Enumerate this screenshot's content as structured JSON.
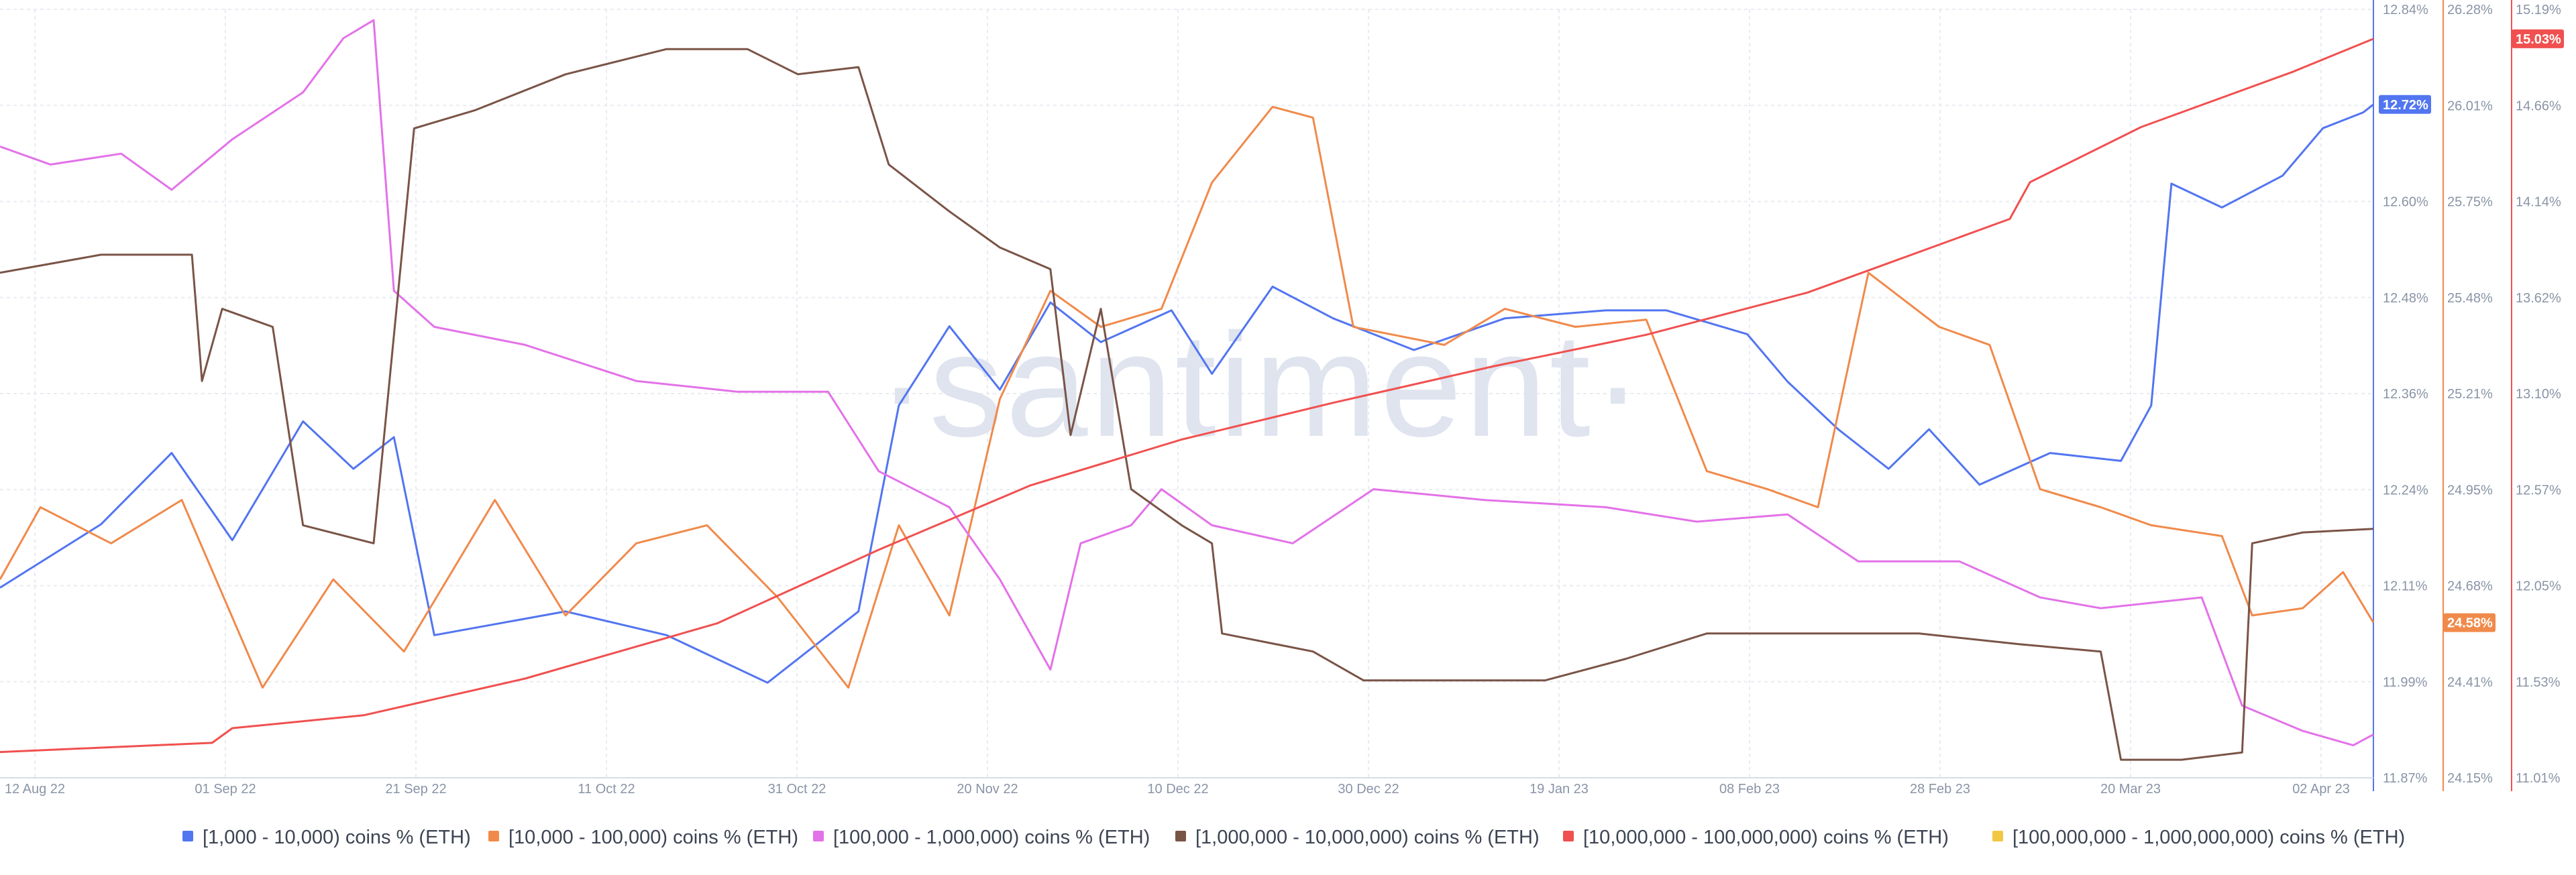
{
  "watermark": "·santiment·",
  "chart_data": {
    "type": "line",
    "x_ticks": [
      "12 Aug 22",
      "01 Sep 22",
      "21 Sep 22",
      "11 Oct 22",
      "31 Oct 22",
      "20 Nov 22",
      "10 Dec 22",
      "30 Dec 22",
      "19 Jan 23",
      "08 Feb 23",
      "28 Feb 23",
      "20 Mar 23",
      "02 Apr 23"
    ],
    "x_range": [
      "2022-08-10",
      "2023-04-02"
    ],
    "grid": true,
    "legend_position": "bottom",
    "axes": [
      {
        "id": "blue",
        "color": "#5275f0",
        "ylim": [
          11.87,
          12.84
        ],
        "ticks": [
          "12.84%",
          "12.72%",
          "12.60%",
          "12.48%",
          "12.36%",
          "12.24%",
          "12.11%",
          "11.99%",
          "11.87%"
        ],
        "badge": "12.72%"
      },
      {
        "id": "orange",
        "color": "#f08a4b",
        "ylim": [
          24.15,
          26.28
        ],
        "ticks": [
          "26.28%",
          "26.01%",
          "25.75%",
          "25.48%",
          "25.21%",
          "24.95%",
          "24.68%",
          "24.41%",
          "24.15%"
        ],
        "badge": "24.58%"
      },
      {
        "id": "red",
        "color": "#f0504f",
        "ylim": [
          11.01,
          15.19
        ],
        "ticks": [
          "15.19%",
          "14.66%",
          "14.14%",
          "13.62%",
          "13.10%",
          "12.57%",
          "12.05%",
          "11.53%",
          "11.01%"
        ],
        "badge": "15.03%"
      }
    ],
    "series": [
      {
        "name": "[1,000 - 10,000) coins % (ETH)",
        "color": "#5275f0",
        "axis": "blue",
        "unit": "%",
        "points": [
          [
            "2022-08-10",
            12.11
          ],
          [
            "2022-08-20",
            12.19
          ],
          [
            "2022-08-27",
            12.28
          ],
          [
            "2022-09-02",
            12.17
          ],
          [
            "2022-09-09",
            12.32
          ],
          [
            "2022-09-14",
            12.26
          ],
          [
            "2022-09-18",
            12.3
          ],
          [
            "2022-09-22",
            12.05
          ],
          [
            "2022-10-05",
            12.08
          ],
          [
            "2022-10-15",
            12.05
          ],
          [
            "2022-10-25",
            11.99
          ],
          [
            "2022-11-03",
            12.08
          ],
          [
            "2022-11-07",
            12.34
          ],
          [
            "2022-11-12",
            12.44
          ],
          [
            "2022-11-17",
            12.36
          ],
          [
            "2022-11-22",
            12.47
          ],
          [
            "2022-11-27",
            12.42
          ],
          [
            "2022-12-04",
            12.46
          ],
          [
            "2022-12-08",
            12.38
          ],
          [
            "2022-12-14",
            12.49
          ],
          [
            "2022-12-20",
            12.45
          ],
          [
            "2022-12-28",
            12.41
          ],
          [
            "2023-01-06",
            12.45
          ],
          [
            "2023-01-16",
            12.46
          ],
          [
            "2023-01-22",
            12.46
          ],
          [
            "2023-01-30",
            12.43
          ],
          [
            "2023-02-03",
            12.37
          ],
          [
            "2023-02-08",
            12.31
          ],
          [
            "2023-02-13",
            12.26
          ],
          [
            "2023-02-17",
            12.31
          ],
          [
            "2023-02-22",
            12.24
          ],
          [
            "2023-03-01",
            12.28
          ],
          [
            "2023-03-08",
            12.27
          ],
          [
            "2023-03-11",
            12.34
          ],
          [
            "2023-03-13",
            12.62
          ],
          [
            "2023-03-18",
            12.59
          ],
          [
            "2023-03-24",
            12.63
          ],
          [
            "2023-03-28",
            12.69
          ],
          [
            "2023-04-01",
            12.71
          ],
          [
            "2023-04-02",
            12.72
          ]
        ]
      },
      {
        "name": "[10,000 - 100,000) coins % (ETH)",
        "color": "#f08a4b",
        "axis": "orange",
        "unit": "%",
        "points": [
          [
            "2022-08-10",
            24.7
          ],
          [
            "2022-08-14",
            24.9
          ],
          [
            "2022-08-21",
            24.8
          ],
          [
            "2022-08-28",
            24.92
          ],
          [
            "2022-09-05",
            24.4
          ],
          [
            "2022-09-12",
            24.7
          ],
          [
            "2022-09-19",
            24.5
          ],
          [
            "2022-09-28",
            24.92
          ],
          [
            "2022-10-05",
            24.6
          ],
          [
            "2022-10-12",
            24.8
          ],
          [
            "2022-10-19",
            24.85
          ],
          [
            "2022-10-26",
            24.65
          ],
          [
            "2022-11-02",
            24.4
          ],
          [
            "2022-11-07",
            24.85
          ],
          [
            "2022-11-12",
            24.6
          ],
          [
            "2022-11-17",
            25.2
          ],
          [
            "2022-11-22",
            25.5
          ],
          [
            "2022-11-27",
            25.4
          ],
          [
            "2022-12-03",
            25.45
          ],
          [
            "2022-12-08",
            25.8
          ],
          [
            "2022-12-14",
            26.01
          ],
          [
            "2022-12-18",
            25.98
          ],
          [
            "2022-12-22",
            25.4
          ],
          [
            "2022-12-31",
            25.35
          ],
          [
            "2023-01-06",
            25.45
          ],
          [
            "2023-01-13",
            25.4
          ],
          [
            "2023-01-20",
            25.42
          ],
          [
            "2023-01-26",
            25.0
          ],
          [
            "2023-02-01",
            24.95
          ],
          [
            "2023-02-06",
            24.9
          ],
          [
            "2023-02-11",
            25.55
          ],
          [
            "2023-02-18",
            25.4
          ],
          [
            "2023-02-23",
            25.35
          ],
          [
            "2023-02-28",
            24.95
          ],
          [
            "2023-03-06",
            24.9
          ],
          [
            "2023-03-11",
            24.85
          ],
          [
            "2023-03-18",
            24.82
          ],
          [
            "2023-03-21",
            24.6
          ],
          [
            "2023-03-26",
            24.62
          ],
          [
            "2023-03-30",
            24.72
          ],
          [
            "2023-04-02",
            24.58
          ]
        ]
      },
      {
        "name": "[100,000  - 1,000,000) coins % (ETH)",
        "color": "#e372e8",
        "axis": "orange",
        "unit": "%",
        "points": [
          [
            "2022-08-10",
            25.9
          ],
          [
            "2022-08-15",
            25.85
          ],
          [
            "2022-08-22",
            25.88
          ],
          [
            "2022-08-27",
            25.78
          ],
          [
            "2022-09-02",
            25.92
          ],
          [
            "2022-09-09",
            26.05
          ],
          [
            "2022-09-13",
            26.2
          ],
          [
            "2022-09-16",
            26.25
          ],
          [
            "2022-09-18",
            25.5
          ],
          [
            "2022-09-22",
            25.4
          ],
          [
            "2022-10-01",
            25.35
          ],
          [
            "2022-10-12",
            25.25
          ],
          [
            "2022-10-22",
            25.22
          ],
          [
            "2022-10-31",
            25.22
          ],
          [
            "2022-11-05",
            25.0
          ],
          [
            "2022-11-12",
            24.9
          ],
          [
            "2022-11-17",
            24.7
          ],
          [
            "2022-11-22",
            24.45
          ],
          [
            "2022-11-25",
            24.8
          ],
          [
            "2022-11-30",
            24.85
          ],
          [
            "2022-12-03",
            24.95
          ],
          [
            "2022-12-08",
            24.85
          ],
          [
            "2022-12-16",
            24.8
          ],
          [
            "2022-12-24",
            24.95
          ],
          [
            "2023-01-04",
            24.92
          ],
          [
            "2023-01-16",
            24.9
          ],
          [
            "2023-01-25",
            24.86
          ],
          [
            "2023-02-03",
            24.88
          ],
          [
            "2023-02-10",
            24.75
          ],
          [
            "2023-02-20",
            24.75
          ],
          [
            "2023-02-28",
            24.65
          ],
          [
            "2023-03-06",
            24.62
          ],
          [
            "2023-03-16",
            24.65
          ],
          [
            "2023-03-20",
            24.35
          ],
          [
            "2023-03-26",
            24.28
          ],
          [
            "2023-03-31",
            24.24
          ],
          [
            "2023-04-02",
            24.27
          ]
        ]
      },
      {
        "name": "[1,000,000 - 10,000,000) coins % (ETH)",
        "color": "#7a5447",
        "axis": "orange",
        "unit": "%",
        "points": [
          [
            "2022-08-10",
            25.55
          ],
          [
            "2022-08-20",
            25.6
          ],
          [
            "2022-08-29",
            25.6
          ],
          [
            "2022-08-30",
            25.25
          ],
          [
            "2022-09-01",
            25.45
          ],
          [
            "2022-09-06",
            25.4
          ],
          [
            "2022-09-09",
            24.85
          ],
          [
            "2022-09-16",
            24.8
          ],
          [
            "2022-09-20",
            25.95
          ],
          [
            "2022-09-26",
            26.0
          ],
          [
            "2022-10-05",
            26.1
          ],
          [
            "2022-10-15",
            26.17
          ],
          [
            "2022-10-23",
            26.17
          ],
          [
            "2022-10-28",
            26.1
          ],
          [
            "2022-11-03",
            26.12
          ],
          [
            "2022-11-06",
            25.85
          ],
          [
            "2022-11-12",
            25.72
          ],
          [
            "2022-11-17",
            25.62
          ],
          [
            "2022-11-22",
            25.56
          ],
          [
            "2022-11-24",
            25.1
          ],
          [
            "2022-11-27",
            25.45
          ],
          [
            "2022-11-30",
            24.95
          ],
          [
            "2022-12-05",
            24.85
          ],
          [
            "2022-12-08",
            24.8
          ],
          [
            "2022-12-09",
            24.55
          ],
          [
            "2022-12-18",
            24.5
          ],
          [
            "2022-12-23",
            24.42
          ],
          [
            "2023-01-10",
            24.42
          ],
          [
            "2023-01-18",
            24.48
          ],
          [
            "2023-01-26",
            24.55
          ],
          [
            "2023-02-06",
            24.55
          ],
          [
            "2023-02-16",
            24.55
          ],
          [
            "2023-02-26",
            24.52
          ],
          [
            "2023-03-06",
            24.5
          ],
          [
            "2023-03-08",
            24.2
          ],
          [
            "2023-03-14",
            24.2
          ],
          [
            "2023-03-20",
            24.22
          ],
          [
            "2023-03-21",
            24.8
          ],
          [
            "2023-03-26",
            24.83
          ],
          [
            "2023-04-02",
            24.84
          ]
        ]
      },
      {
        "name": "[10,000,000 - 100,000,000) coins % (ETH)",
        "color": "#f0504f",
        "axis": "red",
        "unit": "%",
        "points": [
          [
            "2022-08-10",
            11.15
          ],
          [
            "2022-08-31",
            11.2
          ],
          [
            "2022-09-02",
            11.28
          ],
          [
            "2022-09-15",
            11.35
          ],
          [
            "2022-10-01",
            11.55
          ],
          [
            "2022-10-20",
            11.85
          ],
          [
            "2022-11-05",
            12.25
          ],
          [
            "2022-11-20",
            12.6
          ],
          [
            "2022-12-05",
            12.85
          ],
          [
            "2022-12-20",
            13.05
          ],
          [
            "2023-01-05",
            13.25
          ],
          [
            "2023-01-20",
            13.42
          ],
          [
            "2023-02-05",
            13.65
          ],
          [
            "2023-02-20",
            13.95
          ],
          [
            "2023-02-25",
            14.05
          ],
          [
            "2023-02-27",
            14.25
          ],
          [
            "2023-03-10",
            14.55
          ],
          [
            "2023-03-25",
            14.85
          ],
          [
            "2023-04-02",
            15.03
          ]
        ]
      },
      {
        "name": "[100,000,000 - 1,000,000,000) coins % (ETH)",
        "color": "#f2c744",
        "axis": "red",
        "unit": "%",
        "points": []
      }
    ]
  }
}
